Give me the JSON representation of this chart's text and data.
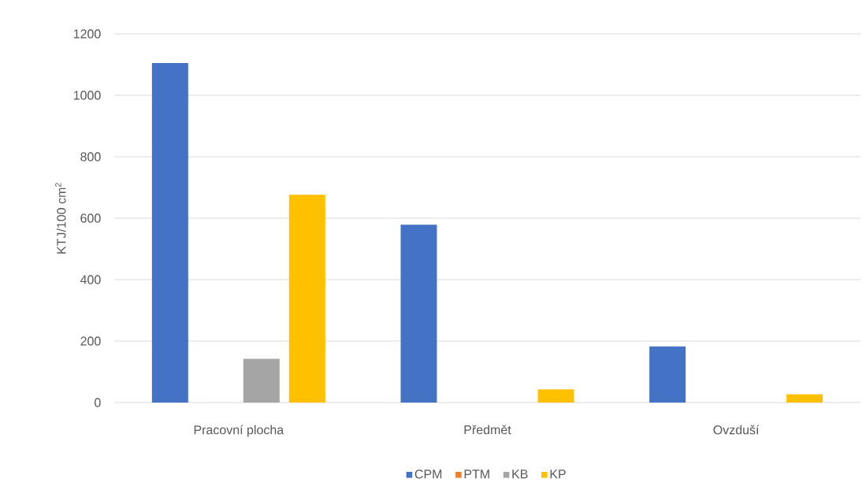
{
  "chart_data": {
    "type": "bar",
    "ylabel": "KTJ/100 cm$^{2}$",
    "categories": [
      "Pracovní plocha",
      "Předmět",
      "Ovzduší"
    ],
    "series": [
      {
        "name": "CPM",
        "color": "#4472c4",
        "values": [
          1105,
          579,
          183
        ]
      },
      {
        "name": "PTM",
        "color": "#ed7d31",
        "values": [
          0,
          0,
          0
        ]
      },
      {
        "name": "KB",
        "color": "#a5a5a5",
        "values": [
          142,
          0,
          0
        ]
      },
      {
        "name": "KP",
        "color": "#ffc000",
        "values": [
          676,
          43,
          27
        ]
      }
    ],
    "ylim": [
      0,
      1200
    ],
    "yticks": [
      0,
      200,
      400,
      600,
      800,
      1000,
      1200
    ],
    "grid": "y",
    "legend": "bottom"
  }
}
